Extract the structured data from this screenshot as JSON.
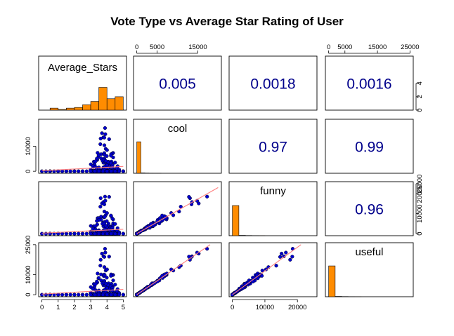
{
  "title": "Vote Type vs Average Star Rating of User",
  "colors": {
    "bar_fill": "#ff8c00",
    "point_fill": "#0000cd",
    "point_stroke": "#000000",
    "fit_line": "#ff7f7f",
    "correlation_text": "#00008b"
  },
  "chart_data": {
    "type": "scatter",
    "title": "Vote Type vs Average Star Rating of User",
    "variables": [
      "Average_Stars",
      "cool",
      "funny",
      "useful"
    ],
    "layout": "scatterplot matrix: histograms on diagonal, scatter plots with fitted line below diagonal, correlation coefficients above diagonal",
    "ranges": {
      "Average_Stars": [
        0,
        5
      ],
      "cool": [
        0,
        20000
      ],
      "funny": [
        0,
        25000
      ],
      "useful": [
        0,
        25000
      ]
    },
    "ticks": {
      "Average_Stars": {
        "values": [
          0,
          1,
          2,
          3,
          4,
          5
        ],
        "labels": [
          "0",
          "1",
          "2",
          "3",
          "4",
          "5"
        ]
      },
      "cool": {
        "values": [
          0,
          10000
        ],
        "labels": [
          "0",
          "10000"
        ],
        "top_values": [
          0,
          5000,
          15000
        ],
        "top_labels": [
          "0",
          "5000",
          "15000"
        ]
      },
      "funny": {
        "values": [
          0,
          10000,
          20000,
          25000
        ],
        "labels": [
          "0",
          "10000",
          "20000",
          "25000"
        ]
      },
      "useful": {
        "values": [
          0,
          10000,
          25000
        ],
        "labels": [
          "0",
          "10000",
          "25000"
        ],
        "bottom_values": [
          0,
          10000,
          20000
        ],
        "bottom_labels": [
          "0",
          "10000",
          "20000"
        ],
        "top_values": [
          0,
          5000,
          15000,
          25000
        ],
        "top_labels": [
          "0",
          "5000",
          "15000",
          "25000"
        ]
      }
    },
    "histogram_count_axis": {
      "values": [
        0,
        2,
        4
      ],
      "labels": [
        "0",
        "2",
        "4"
      ],
      "max": 5
    },
    "histograms": {
      "Average_Stars": {
        "breaks": [
          0,
          0.5,
          1,
          1.5,
          2,
          2.5,
          3,
          3.5,
          4,
          4.5,
          5
        ],
        "density": [
          0,
          0.3,
          0.1,
          0.3,
          0.4,
          0.8,
          1.3,
          3.4,
          1.7,
          2.0
        ]
      },
      "cool": {
        "breaks": [
          0,
          1000,
          2000,
          3000,
          4000,
          5000,
          6000,
          7000,
          8000,
          9000,
          10000,
          11000,
          12000,
          13000,
          14000,
          15000,
          16000,
          17000,
          18000,
          19000,
          20000
        ],
        "density": [
          4.7,
          0.05,
          0.03,
          0.02,
          0.01,
          0.01,
          0,
          0,
          0,
          0,
          0,
          0,
          0,
          0,
          0,
          0,
          0,
          0,
          0,
          0
        ]
      },
      "funny": {
        "breaks": [
          0,
          2000,
          4000,
          6000,
          8000,
          10000,
          12000,
          14000,
          16000,
          18000,
          20000,
          22000,
          24000,
          26000
        ],
        "density": [
          4.5,
          0.05,
          0.03,
          0.02,
          0.01,
          0,
          0,
          0,
          0,
          0,
          0,
          0,
          0
        ]
      },
      "useful": {
        "breaks": [
          0,
          2000,
          4000,
          6000,
          8000,
          10000,
          12000,
          14000,
          16000,
          18000,
          20000,
          22000,
          24000,
          26000
        ],
        "density": [
          4.6,
          0.05,
          0.03,
          0.02,
          0.01,
          0,
          0,
          0,
          0,
          0,
          0,
          0,
          0
        ]
      }
    },
    "correlations": [
      {
        "row": "Average_Stars",
        "col": "cool",
        "value": "0.005"
      },
      {
        "row": "Average_Stars",
        "col": "funny",
        "value": "0.0018"
      },
      {
        "row": "Average_Stars",
        "col": "useful",
        "value": "0.0016"
      },
      {
        "row": "cool",
        "col": "funny",
        "value": "0.97"
      },
      {
        "row": "cool",
        "col": "useful",
        "value": "0.99"
      },
      {
        "row": "funny",
        "col": "useful",
        "value": "0.96"
      }
    ],
    "grid": false
  }
}
